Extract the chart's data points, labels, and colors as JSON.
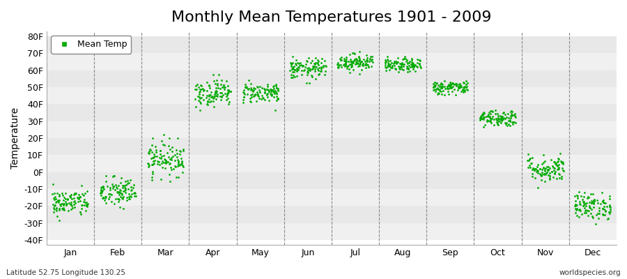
{
  "title": "Monthly Mean Temperatures 1901 - 2009",
  "ylabel": "Temperature",
  "yticks": [
    -40,
    -30,
    -20,
    -10,
    0,
    10,
    20,
    30,
    40,
    50,
    60,
    70,
    80
  ],
  "ytick_labels": [
    "-40F",
    "-30F",
    "-20F",
    "-10F",
    "0F",
    "10F",
    "20F",
    "30F",
    "40F",
    "50F",
    "60F",
    "70F",
    "80F"
  ],
  "ylim": [
    -43,
    83
  ],
  "months": [
    "Jan",
    "Feb",
    "Mar",
    "Apr",
    "May",
    "Jun",
    "Jul",
    "Aug",
    "Sep",
    "Oct",
    "Nov",
    "Dec"
  ],
  "month_centers": [
    0.5,
    1.5,
    2.5,
    3.5,
    4.5,
    5.5,
    6.5,
    7.5,
    8.5,
    9.5,
    10.5,
    11.5
  ],
  "dot_color": "#00AA00",
  "dot_size": 4,
  "background_color": "#ffffff",
  "band_color_light": "#f0f0f0",
  "band_color_dark": "#e8e8e8",
  "title_fontsize": 16,
  "axis_label_fontsize": 10,
  "tick_fontsize": 9,
  "legend_label": "Mean Temp",
  "footer_left": "Latitude 52.75 Longitude 130.25",
  "footer_right": "worldspecies.org",
  "monthly_means": [
    -18,
    -12,
    8,
    47,
    47,
    61,
    65,
    63,
    50,
    32,
    2,
    -20
  ],
  "monthly_spreads": [
    8,
    9,
    10,
    8,
    6,
    6,
    5,
    4,
    4,
    5,
    8,
    8
  ],
  "n_years": 109
}
